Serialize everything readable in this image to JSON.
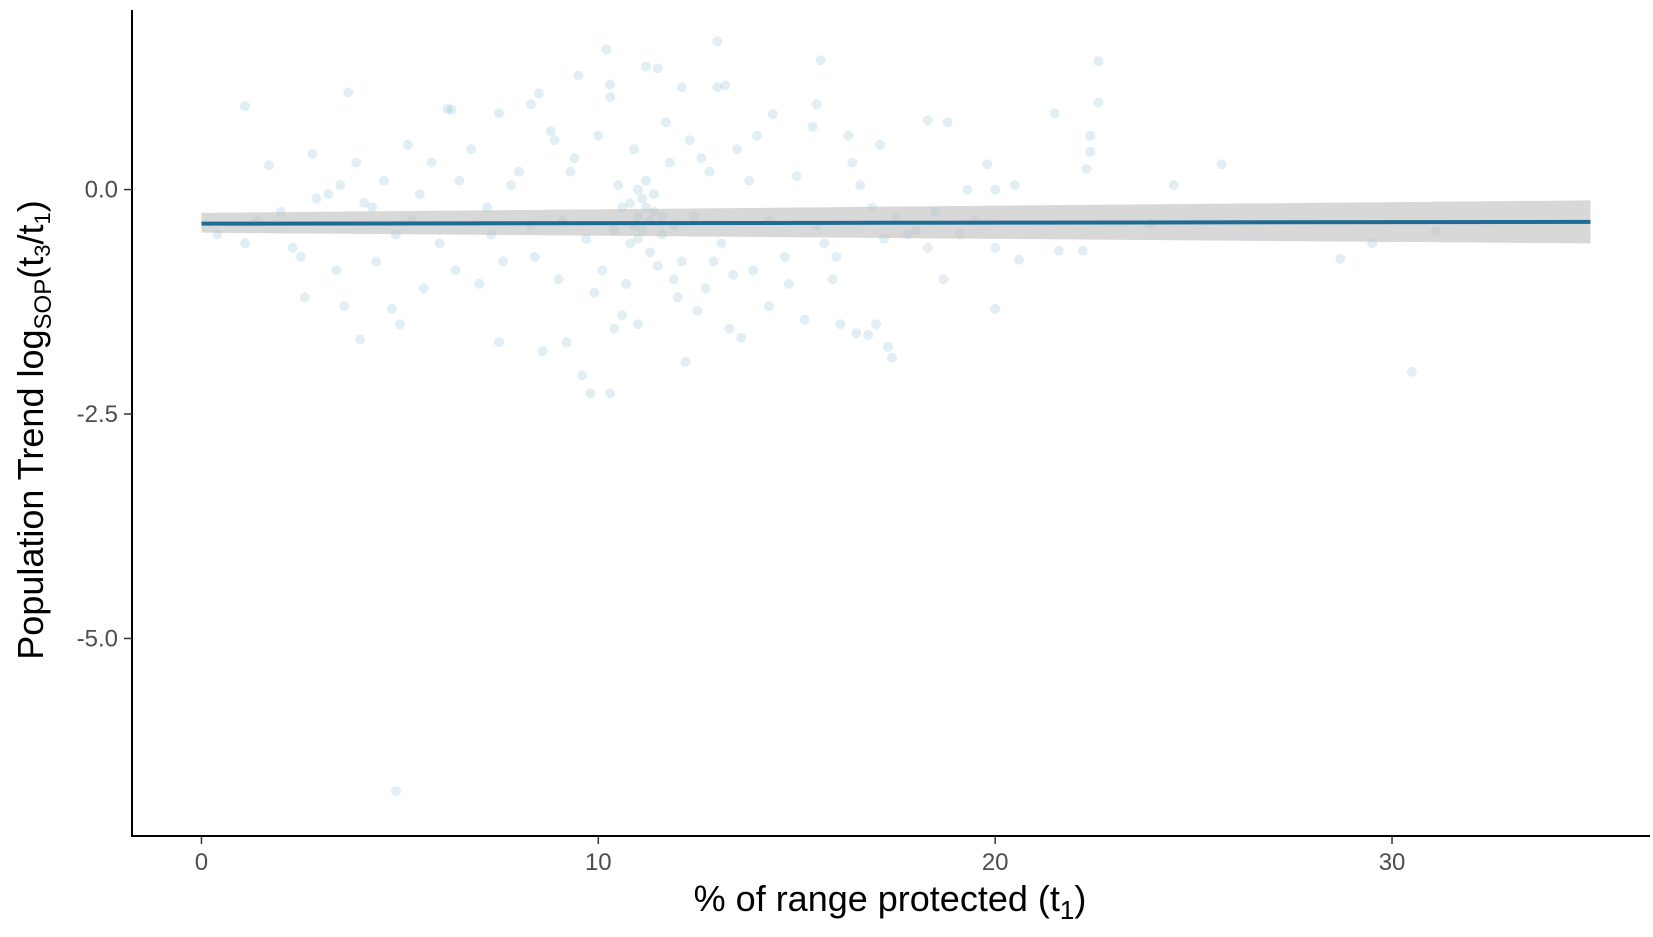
{
  "chart_data": {
    "type": "scatter",
    "xlabel": {
      "main": "% of range protected (t",
      "sub": "1",
      "close": ")"
    },
    "ylabel": {
      "main": "Population Trend log",
      "log_base": "SOP",
      "open": "(t",
      "sub3": "3",
      "slash": "/t",
      "sub1": "1",
      "close": ")"
    },
    "xlim": [
      -1.75,
      36.5
    ],
    "ylim": [
      -7.2,
      2.0
    ],
    "x_ticks": [
      0,
      10,
      20,
      30
    ],
    "x_tick_labels": [
      "0",
      "10",
      "20",
      "30"
    ],
    "y_ticks": [
      0.0,
      -2.5,
      -5.0
    ],
    "y_tick_labels": [
      "0.0",
      "-2.5",
      "-5.0"
    ],
    "grid": false,
    "legend": "none",
    "point_color": "#1a7aa6",
    "point_opacity": 0.13,
    "regression": {
      "x": [
        0,
        35
      ],
      "y": [
        -0.38,
        -0.36
      ],
      "ci_lower": [
        -0.48,
        -0.6
      ],
      "ci_upper": [
        -0.26,
        -0.12
      ],
      "line_color": "#1f6b93",
      "ribbon_color": "#bebebe"
    },
    "points": [
      [
        4.9,
        -6.7
      ],
      [
        1.1,
        0.93
      ],
      [
        3.7,
        1.08
      ],
      [
        10.2,
        1.56
      ],
      [
        13.0,
        1.65
      ],
      [
        15.6,
        1.44
      ],
      [
        22.6,
        1.43
      ],
      [
        11.2,
        1.37
      ],
      [
        11.5,
        1.35
      ],
      [
        9.5,
        1.27
      ],
      [
        10.3,
        1.17
      ],
      [
        12.1,
        1.14
      ],
      [
        13.0,
        1.14
      ],
      [
        13.2,
        1.16
      ],
      [
        22.6,
        0.97
      ],
      [
        15.5,
        0.95
      ],
      [
        8.5,
        1.07
      ],
      [
        8.3,
        0.95
      ],
      [
        10.3,
        1.03
      ],
      [
        6.3,
        0.89
      ],
      [
        14.4,
        0.84
      ],
      [
        21.5,
        0.85
      ],
      [
        22.4,
        0.6
      ],
      [
        22.4,
        0.42
      ],
      [
        18.8,
        0.75
      ],
      [
        18.3,
        0.77
      ],
      [
        25.7,
        0.28
      ],
      [
        24.5,
        0.05
      ],
      [
        22.3,
        0.23
      ],
      [
        19.8,
        0.28
      ],
      [
        20.5,
        0.05
      ],
      [
        20.0,
        0.0
      ],
      [
        19.3,
        0.0
      ],
      [
        20.6,
        -0.78
      ],
      [
        20.0,
        -0.65
      ],
      [
        20.0,
        -1.33
      ],
      [
        21.6,
        -0.68
      ],
      [
        22.2,
        -0.68
      ],
      [
        23.9,
        -0.38
      ],
      [
        28.7,
        -0.77
      ],
      [
        29.5,
        -0.6
      ],
      [
        31.1,
        -0.46
      ],
      [
        30.5,
        -2.03
      ],
      [
        17.4,
        -1.87
      ],
      [
        17.3,
        -1.75
      ],
      [
        17.0,
        -1.5
      ],
      [
        16.5,
        -1.6
      ],
      [
        16.8,
        -1.62
      ],
      [
        16.1,
        -1.5
      ],
      [
        13.6,
        -1.65
      ],
      [
        13.3,
        -1.55
      ],
      [
        12.5,
        -1.35
      ],
      [
        12.2,
        -1.92
      ],
      [
        9.6,
        -2.07
      ],
      [
        9.8,
        -2.27
      ],
      [
        10.3,
        -2.27
      ],
      [
        8.6,
        -1.8
      ],
      [
        7.5,
        -1.7
      ],
      [
        4.0,
        -1.67
      ],
      [
        5.0,
        -1.5
      ],
      [
        4.8,
        -1.33
      ],
      [
        3.6,
        -1.3
      ],
      [
        2.6,
        -1.2
      ],
      [
        9.2,
        -1.7
      ],
      [
        10.4,
        -1.55
      ],
      [
        10.6,
        -1.4
      ],
      [
        11.0,
        -1.5
      ],
      [
        12.0,
        -1.2
      ],
      [
        14.3,
        -1.3
      ],
      [
        15.2,
        -1.45
      ],
      [
        18.7,
        -1.0
      ],
      [
        18.3,
        -0.65
      ],
      [
        17.8,
        -0.5
      ],
      [
        0.4,
        -0.5
      ],
      [
        1.1,
        -0.6
      ],
      [
        1.7,
        0.27
      ],
      [
        2.0,
        -0.25
      ],
      [
        2.5,
        -0.75
      ],
      [
        2.8,
        0.4
      ],
      [
        2.9,
        -0.1
      ],
      [
        3.2,
        -0.05
      ],
      [
        3.5,
        0.05
      ],
      [
        3.9,
        0.3
      ],
      [
        4.3,
        -0.2
      ],
      [
        4.6,
        0.1
      ],
      [
        4.9,
        -0.5
      ],
      [
        5.2,
        0.5
      ],
      [
        5.5,
        -0.05
      ],
      [
        5.8,
        0.3
      ],
      [
        6.0,
        -0.6
      ],
      [
        6.4,
        -0.9
      ],
      [
        6.8,
        0.45
      ],
      [
        7.2,
        -0.2
      ],
      [
        7.6,
        -0.8
      ],
      [
        8.0,
        0.2
      ],
      [
        8.3,
        -0.4
      ],
      [
        8.8,
        0.65
      ],
      [
        9.1,
        -0.35
      ],
      [
        9.4,
        0.35
      ],
      [
        9.7,
        -0.55
      ],
      [
        10.0,
        0.6
      ],
      [
        10.5,
        0.05
      ],
      [
        10.8,
        -0.6
      ],
      [
        11.0,
        -0.3
      ],
      [
        11.1,
        -0.45
      ],
      [
        11.2,
        0.1
      ],
      [
        11.3,
        -0.7
      ],
      [
        11.4,
        -0.25
      ],
      [
        11.6,
        -0.5
      ],
      [
        11.8,
        0.3
      ],
      [
        12.1,
        -0.8
      ],
      [
        12.4,
        -0.3
      ],
      [
        12.8,
        0.2
      ],
      [
        13.1,
        -0.6
      ],
      [
        13.5,
        0.45
      ],
      [
        13.9,
        -0.9
      ],
      [
        14.3,
        -0.35
      ],
      [
        14.7,
        -0.75
      ],
      [
        15.0,
        0.15
      ],
      [
        15.5,
        -0.4
      ],
      [
        16.0,
        -0.75
      ],
      [
        16.4,
        0.3
      ],
      [
        16.9,
        -0.2
      ],
      [
        17.5,
        -0.3
      ],
      [
        18.0,
        -0.45
      ],
      [
        19.5,
        -0.35
      ],
      [
        6.2,
        0.9
      ],
      [
        7.5,
        0.85
      ],
      [
        8.9,
        0.55
      ],
      [
        11.7,
        0.75
      ],
      [
        12.3,
        0.55
      ],
      [
        14.0,
        0.6
      ],
      [
        15.4,
        0.7
      ],
      [
        16.3,
        0.6
      ],
      [
        17.1,
        0.5
      ],
      [
        9.0,
        -1.0
      ],
      [
        9.9,
        -1.15
      ],
      [
        10.7,
        -1.05
      ],
      [
        11.9,
        -1.0
      ],
      [
        12.7,
        -1.1
      ],
      [
        13.4,
        -0.95
      ],
      [
        14.8,
        -1.05
      ],
      [
        15.9,
        -1.0
      ],
      [
        7.0,
        -1.05
      ],
      [
        5.6,
        -1.1
      ],
      [
        4.4,
        -0.8
      ],
      [
        3.4,
        -0.9
      ],
      [
        2.3,
        -0.65
      ],
      [
        1.4,
        -0.35
      ],
      [
        6.5,
        0.1
      ],
      [
        7.8,
        0.05
      ],
      [
        9.3,
        0.2
      ],
      [
        10.9,
        0.45
      ],
      [
        12.6,
        0.35
      ],
      [
        13.8,
        0.1
      ],
      [
        16.6,
        0.05
      ],
      [
        10.1,
        -0.9
      ],
      [
        11.5,
        -0.85
      ],
      [
        12.9,
        -0.8
      ],
      [
        8.4,
        -0.75
      ],
      [
        7.3,
        -0.5
      ],
      [
        5.3,
        -0.35
      ],
      [
        4.1,
        -0.15
      ],
      [
        15.7,
        -0.6
      ],
      [
        17.2,
        -0.55
      ],
      [
        18.5,
        -0.25
      ],
      [
        19.1,
        -0.5
      ],
      [
        11.0,
        0.0
      ],
      [
        11.1,
        -0.1
      ],
      [
        11.2,
        -0.2
      ],
      [
        11.3,
        -0.35
      ],
      [
        11.0,
        -0.55
      ],
      [
        10.9,
        -0.4
      ],
      [
        11.4,
        -0.05
      ],
      [
        10.8,
        -0.15
      ],
      [
        11.6,
        -0.3
      ],
      [
        10.6,
        -0.2
      ],
      [
        10.4,
        -0.45
      ],
      [
        11.9,
        -0.4
      ]
    ]
  }
}
